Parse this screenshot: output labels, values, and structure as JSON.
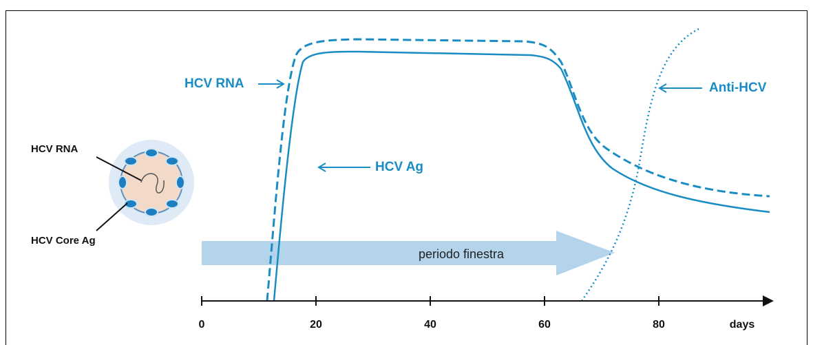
{
  "virus": {
    "rna_label": "HCV RNA",
    "core_label": "HCV Core Ag"
  },
  "curve_labels": {
    "rna": "HCV RNA",
    "ag": "HCV Ag",
    "anti": "Anti-HCV"
  },
  "window_label": "periodo finestra",
  "axis": {
    "ticks": [
      "0",
      "20",
      "40",
      "60",
      "80"
    ],
    "unit": "days"
  }
}
